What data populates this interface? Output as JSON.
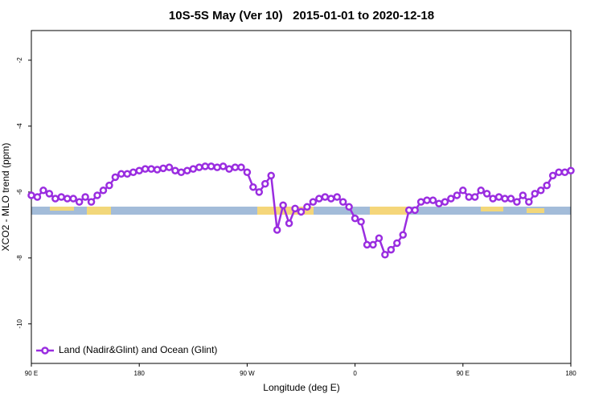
{
  "chart_data": {
    "type": "line",
    "title": "10S-5S May (Ver 10)   2015-01-01 to 2020-12-18",
    "xlabel": "Longitude (deg E)",
    "ylabel": "XCO2 - MLO trend (ppm)",
    "xlim": [
      90,
      540
    ],
    "xticks": [
      {
        "value": 90,
        "label": "90 E"
      },
      180,
      {
        "value": 270,
        "label": "90 W"
      },
      {
        "value": 360,
        "label": "0"
      },
      {
        "value": 450,
        "label": "90 E"
      },
      {
        "value": 540,
        "label": "180"
      }
    ],
    "ylim": [
      -11.2,
      -1.1
    ],
    "yticks": [
      -10,
      -8,
      -6,
      -4,
      -2
    ],
    "legend": "bottom-left",
    "x": [
      90,
      95,
      100,
      105,
      110,
      115,
      120,
      125,
      130,
      135,
      140,
      145,
      150,
      155,
      160,
      165,
      170,
      175,
      180,
      185,
      190,
      195,
      200,
      205,
      210,
      215,
      220,
      225,
      230,
      235,
      240,
      245,
      250,
      255,
      260,
      265,
      270,
      275,
      280,
      285,
      290,
      295,
      300,
      305,
      310,
      315,
      320,
      325,
      330,
      335,
      340,
      345,
      350,
      355,
      360,
      365,
      370,
      375,
      380,
      385,
      390,
      395,
      400,
      405,
      410,
      415,
      420,
      425,
      430,
      435,
      440,
      445,
      450,
      455,
      460,
      465,
      470,
      475,
      480,
      485,
      490,
      495,
      500,
      505,
      510,
      515,
      520,
      525,
      530,
      535,
      540
    ],
    "series": [
      {
        "name": "Land (Nadir&Glint) and Ocean (Glint)",
        "color": "#9a2de0",
        "values": [
          -6.1,
          -6.15,
          -5.95,
          -6.05,
          -6.2,
          -6.15,
          -6.2,
          -6.2,
          -6.3,
          -6.15,
          -6.3,
          -6.1,
          -5.95,
          -5.8,
          -5.55,
          -5.45,
          -5.45,
          -5.4,
          -5.35,
          -5.3,
          -5.3,
          -5.32,
          -5.28,
          -5.25,
          -5.35,
          -5.4,
          -5.35,
          -5.3,
          -5.25,
          -5.22,
          -5.22,
          -5.25,
          -5.22,
          -5.3,
          -5.25,
          -5.25,
          -5.4,
          -5.85,
          -6.0,
          -5.75,
          -5.5,
          -7.15,
          -6.4,
          -6.95,
          -6.5,
          -6.6,
          -6.45,
          -6.3,
          -6.2,
          -6.15,
          -6.2,
          -6.15,
          -6.3,
          -6.45,
          -6.8,
          -6.9,
          -7.6,
          -7.6,
          -7.4,
          -7.9,
          -7.75,
          -7.55,
          -7.3,
          -6.55,
          -6.55,
          -6.3,
          -6.25,
          -6.25,
          -6.35,
          -6.3,
          -6.2,
          -6.1,
          -5.95,
          -6.15,
          -6.15,
          -5.95,
          -6.05,
          -6.2,
          -6.15,
          -6.2,
          -6.2,
          -6.3,
          -6.1,
          -6.3,
          -6.05,
          -5.95,
          -5.8,
          -5.5,
          -5.4,
          -5.4,
          -5.35
        ]
      }
    ]
  }
}
